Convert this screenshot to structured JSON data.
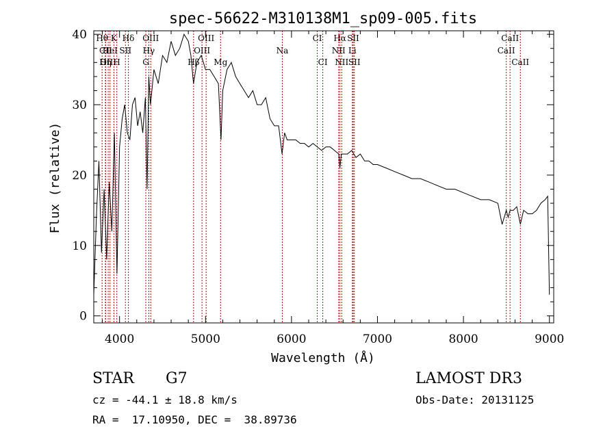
{
  "chart_data": {
    "type": "line",
    "title": "spec-56622-M310138M1_sp09-005.fits",
    "xlabel": "Wavelength (Å)",
    "ylabel": "Flux (relative)",
    "xlim": [
      3700,
      9050
    ],
    "ylim": [
      -1,
      40.5
    ],
    "x_ticks": [
      4000,
      5000,
      6000,
      7000,
      8000,
      9000
    ],
    "y_ticks": [
      0,
      10,
      20,
      30,
      40
    ],
    "grid": false,
    "series": [
      {
        "name": "flux",
        "x": [
          3700,
          3730,
          3760,
          3790,
          3820,
          3850,
          3880,
          3910,
          3940,
          3970,
          4000,
          4030,
          4060,
          4090,
          4120,
          4150,
          4180,
          4210,
          4240,
          4270,
          4300,
          4320,
          4340,
          4360,
          4400,
          4450,
          4500,
          4550,
          4600,
          4650,
          4700,
          4750,
          4800,
          4830,
          4860,
          4900,
          4950,
          5000,
          5050,
          5100,
          5150,
          5180,
          5200,
          5250,
          5300,
          5350,
          5400,
          5450,
          5500,
          5550,
          5600,
          5650,
          5700,
          5750,
          5800,
          5850,
          5890,
          5920,
          5950,
          6000,
          6050,
          6100,
          6150,
          6200,
          6250,
          6300,
          6350,
          6400,
          6450,
          6500,
          6550,
          6563,
          6580,
          6600,
          6650,
          6700,
          6750,
          6800,
          6850,
          6900,
          6950,
          7000,
          7100,
          7200,
          7300,
          7400,
          7500,
          7600,
          7700,
          7800,
          7900,
          8000,
          8100,
          8200,
          8300,
          8400,
          8450,
          8498,
          8520,
          8542,
          8580,
          8620,
          8662,
          8700,
          8750,
          8800,
          8850,
          8900,
          8950,
          8980,
          9000
        ],
        "values": [
          3,
          14,
          22,
          9,
          18,
          8,
          19,
          12,
          26,
          6,
          24,
          28,
          30,
          26,
          25,
          30,
          31,
          27,
          29,
          26,
          31,
          18,
          34,
          30,
          35,
          33,
          37,
          36,
          39,
          37,
          38,
          40,
          39,
          37,
          33,
          36,
          37,
          35,
          35,
          34,
          33,
          25,
          32,
          35,
          36,
          34,
          33,
          32,
          31,
          32,
          30,
          30,
          31,
          28,
          27,
          27,
          23,
          26,
          25,
          25,
          25,
          24.5,
          24.5,
          24,
          24.5,
          24,
          23.5,
          24,
          24,
          23.5,
          23,
          21,
          23,
          23,
          23,
          23.5,
          22.5,
          23,
          22,
          22,
          21.5,
          21.5,
          21,
          20.5,
          20,
          19.5,
          19.5,
          19,
          18.5,
          18,
          18,
          17.5,
          17,
          16.5,
          16.5,
          16,
          13,
          15,
          14,
          15,
          15,
          15.5,
          13,
          15,
          14.5,
          14.5,
          15,
          16,
          16.5,
          17,
          3
        ]
      }
    ],
    "lines": [
      {
        "name": "Hθ",
        "x": 3797,
        "row": 0
      },
      {
        "name": "CII",
        "x": 3838,
        "row": 1
      },
      {
        "name": "OIII",
        "x": 3868,
        "row": 2
      },
      {
        "name": "K",
        "x": 3934,
        "row": 0
      },
      {
        "name": "HeI",
        "x": 3889,
        "row": 1
      },
      {
        "name": "Hη",
        "x": 3835,
        "row": 2
      },
      {
        "name": "H",
        "x": 3968,
        "row": 2
      },
      {
        "name": "SII",
        "x": 4068,
        "row": 1
      },
      {
        "name": "Hδ",
        "x": 4102,
        "row": 0
      },
      {
        "name": "OIII",
        "x": 4363,
        "row": 0
      },
      {
        "name": "Hγ",
        "x": 4340,
        "row": 1
      },
      {
        "name": "G",
        "x": 4305,
        "row": 2
      },
      {
        "name": "Hβ",
        "x": 4861,
        "row": 2
      },
      {
        "name": "OIII",
        "x": 5007,
        "row": 0
      },
      {
        "name": "OIII",
        "x": 4959,
        "row": 1
      },
      {
        "name": "Mg",
        "x": 5175,
        "row": 2
      },
      {
        "name": "Na",
        "x": 5893,
        "row": 1
      },
      {
        "name": "CI",
        "x": 6300,
        "row": 0
      },
      {
        "name": "CI",
        "x": 6364,
        "row": 2
      },
      {
        "name": "Hα",
        "x": 6563,
        "row": 0
      },
      {
        "name": "NII",
        "x": 6548,
        "row": 1
      },
      {
        "name": "NII",
        "x": 6584,
        "row": 2
      },
      {
        "name": "SII",
        "x": 6717,
        "row": 0
      },
      {
        "name": "Li",
        "x": 6708,
        "row": 1
      },
      {
        "name": "SII",
        "x": 6731,
        "row": 2
      },
      {
        "name": "CaII",
        "x": 8498,
        "row": 1
      },
      {
        "name": "CaII",
        "x": 8542,
        "row": 0
      },
      {
        "name": "CaII",
        "x": 8662,
        "row": 2
      }
    ]
  },
  "info": {
    "object_class": "STAR",
    "subclass": "G7",
    "survey": "LAMOST DR3",
    "redshift": "cz = -44.1 ± 18.8 km/s",
    "obs_date": "Obs-Date: 20131125",
    "coords": "RA =  17.10950, DEC =  38.89736"
  }
}
